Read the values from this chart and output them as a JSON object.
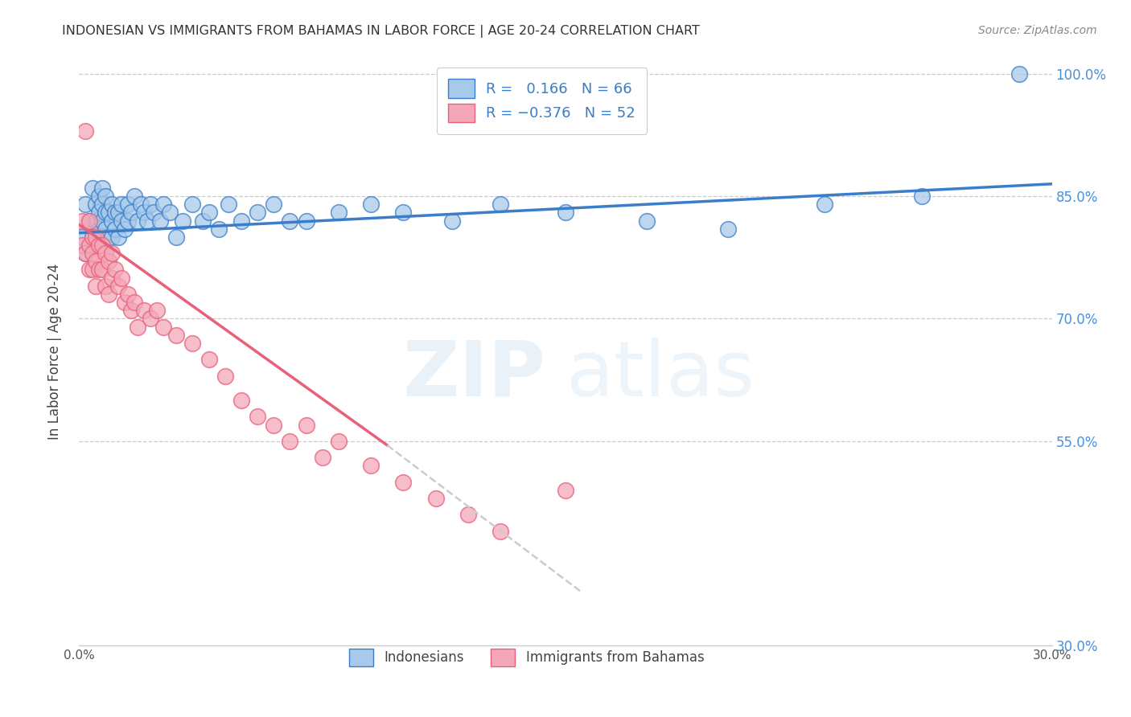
{
  "title": "INDONESIAN VS IMMIGRANTS FROM BAHAMAS IN LABOR FORCE | AGE 20-24 CORRELATION CHART",
  "source": "Source: ZipAtlas.com",
  "ylabel": "In Labor Force | Age 20-24",
  "xlim": [
    0.0,
    0.3
  ],
  "ylim": [
    0.3,
    1.02
  ],
  "yticks": [
    0.3,
    0.55,
    0.7,
    0.85,
    1.0
  ],
  "ytick_labels": [
    "30.0%",
    "55.0%",
    "70.0%",
    "85.0%",
    "100.0%"
  ],
  "xticks": [
    0.0,
    0.05,
    0.1,
    0.15,
    0.2,
    0.25,
    0.3
  ],
  "xtick_labels": [
    "0.0%",
    "",
    "",
    "",
    "",
    "",
    "30.0%"
  ],
  "r1": 0.166,
  "n1": 66,
  "r2": -0.376,
  "n2": 52,
  "color_blue": "#A8CAEA",
  "color_pink": "#F4A7B9",
  "color_blue_line": "#3A7DC9",
  "color_pink_line": "#E8607A",
  "color_dashed": "#CCCCCC",
  "watermark_zip": "ZIP",
  "watermark_atlas": "atlas",
  "indo_x": [
    0.001,
    0.002,
    0.002,
    0.003,
    0.004,
    0.004,
    0.005,
    0.005,
    0.005,
    0.006,
    0.006,
    0.006,
    0.007,
    0.007,
    0.007,
    0.008,
    0.008,
    0.008,
    0.009,
    0.009,
    0.01,
    0.01,
    0.01,
    0.011,
    0.011,
    0.012,
    0.012,
    0.013,
    0.013,
    0.014,
    0.015,
    0.015,
    0.016,
    0.017,
    0.018,
    0.019,
    0.02,
    0.021,
    0.022,
    0.023,
    0.025,
    0.026,
    0.028,
    0.03,
    0.032,
    0.035,
    0.038,
    0.04,
    0.043,
    0.046,
    0.05,
    0.055,
    0.06,
    0.065,
    0.07,
    0.08,
    0.09,
    0.1,
    0.115,
    0.13,
    0.15,
    0.175,
    0.2,
    0.23,
    0.26,
    0.29
  ],
  "indo_y": [
    0.8,
    0.84,
    0.78,
    0.82,
    0.86,
    0.8,
    0.84,
    0.82,
    0.79,
    0.83,
    0.85,
    0.81,
    0.84,
    0.82,
    0.86,
    0.83,
    0.81,
    0.85,
    0.83,
    0.8,
    0.84,
    0.82,
    0.8,
    0.83,
    0.81,
    0.83,
    0.8,
    0.82,
    0.84,
    0.81,
    0.84,
    0.82,
    0.83,
    0.85,
    0.82,
    0.84,
    0.83,
    0.82,
    0.84,
    0.83,
    0.82,
    0.84,
    0.83,
    0.8,
    0.82,
    0.84,
    0.82,
    0.83,
    0.81,
    0.84,
    0.82,
    0.83,
    0.84,
    0.82,
    0.82,
    0.83,
    0.84,
    0.83,
    0.82,
    0.84,
    0.83,
    0.82,
    0.81,
    0.84,
    0.85,
    1.0
  ],
  "bah_x": [
    0.001,
    0.001,
    0.002,
    0.002,
    0.003,
    0.003,
    0.003,
    0.004,
    0.004,
    0.004,
    0.005,
    0.005,
    0.005,
    0.006,
    0.006,
    0.007,
    0.007,
    0.008,
    0.008,
    0.009,
    0.009,
    0.01,
    0.01,
    0.011,
    0.012,
    0.013,
    0.014,
    0.015,
    0.016,
    0.017,
    0.018,
    0.02,
    0.022,
    0.024,
    0.026,
    0.03,
    0.035,
    0.04,
    0.045,
    0.05,
    0.055,
    0.06,
    0.065,
    0.07,
    0.075,
    0.08,
    0.09,
    0.1,
    0.11,
    0.12,
    0.13,
    0.15
  ],
  "bah_y": [
    0.82,
    0.79,
    0.93,
    0.78,
    0.82,
    0.79,
    0.76,
    0.8,
    0.78,
    0.76,
    0.8,
    0.77,
    0.74,
    0.79,
    0.76,
    0.79,
    0.76,
    0.78,
    0.74,
    0.77,
    0.73,
    0.78,
    0.75,
    0.76,
    0.74,
    0.75,
    0.72,
    0.73,
    0.71,
    0.72,
    0.69,
    0.71,
    0.7,
    0.71,
    0.69,
    0.68,
    0.67,
    0.65,
    0.63,
    0.6,
    0.58,
    0.57,
    0.55,
    0.57,
    0.53,
    0.55,
    0.52,
    0.5,
    0.48,
    0.46,
    0.44,
    0.49
  ],
  "line1_x0": 0.0,
  "line1_y0": 0.805,
  "line1_x1": 0.3,
  "line1_y1": 0.865,
  "line2_x0": 0.0,
  "line2_y0": 0.815,
  "line2_solid_x1": 0.095,
  "line2_solid_y1": 0.545,
  "line2_dash_x1": 0.155,
  "line2_dash_y1": 0.365
}
